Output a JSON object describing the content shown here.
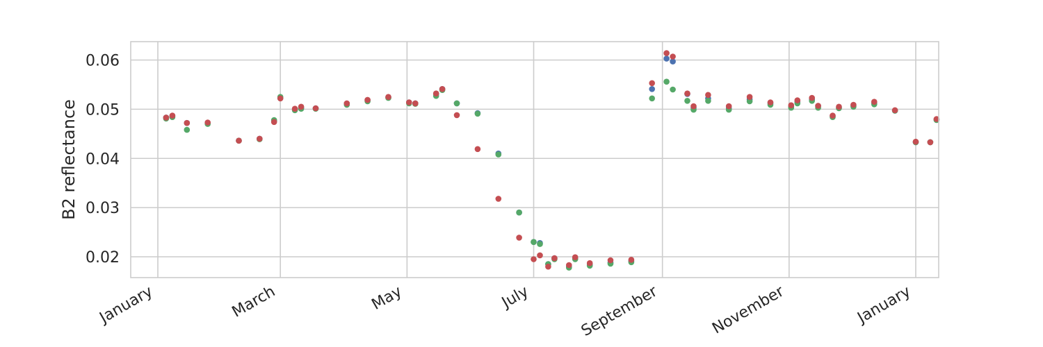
{
  "chart_data": {
    "type": "scatter",
    "title": "",
    "xlabel": "",
    "ylabel": "B2 reflectance",
    "x_scale": "date",
    "xlim": [
      "2018-11-28",
      "2019-01-08"
    ],
    "ylim": [
      0.0157,
      0.0641
    ],
    "grid": true,
    "legend": "none",
    "x_ticks": [
      {
        "date": "2018-01-01",
        "label": "January"
      },
      {
        "date": "2018-03-01",
        "label": "March"
      },
      {
        "date": "2018-05-01",
        "label": "May"
      },
      {
        "date": "2018-07-01",
        "label": "July"
      },
      {
        "date": "2018-09-01",
        "label": "September"
      },
      {
        "date": "2018-11-01",
        "label": "November"
      },
      {
        "date": "2019-01-01",
        "label": "January"
      }
    ],
    "y_ticks": [
      {
        "value": 0.02,
        "label": "0.02"
      },
      {
        "value": 0.03,
        "label": "0.03"
      },
      {
        "value": 0.04,
        "label": "0.04"
      },
      {
        "value": 0.05,
        "label": "0.05"
      },
      {
        "value": 0.06,
        "label": "0.06"
      }
    ],
    "series": [
      {
        "color": "#4c72b0",
        "points": [
          {
            "x": "2018-01-05",
            "y": 0.0483
          },
          {
            "x": "2018-01-08",
            "y": 0.0486
          },
          {
            "x": "2018-01-15",
            "y": 0.0472
          },
          {
            "x": "2018-01-25",
            "y": 0.0472
          },
          {
            "x": "2018-02-09",
            "y": 0.0436
          },
          {
            "x": "2018-02-19",
            "y": 0.044
          },
          {
            "x": "2018-02-26",
            "y": 0.0476
          },
          {
            "x": "2018-03-01",
            "y": 0.0523
          },
          {
            "x": "2018-03-08",
            "y": 0.05
          },
          {
            "x": "2018-03-11",
            "y": 0.0503
          },
          {
            "x": "2018-03-18",
            "y": 0.0502
          },
          {
            "x": "2018-04-02",
            "y": 0.0511
          },
          {
            "x": "2018-04-12",
            "y": 0.0518
          },
          {
            "x": "2018-04-22",
            "y": 0.0524
          },
          {
            "x": "2018-05-02",
            "y": 0.0514
          },
          {
            "x": "2018-05-05",
            "y": 0.0512
          },
          {
            "x": "2018-05-15",
            "y": 0.0531
          },
          {
            "x": "2018-05-18",
            "y": 0.0541
          },
          {
            "x": "2018-05-25",
            "y": 0.0512
          },
          {
            "x": "2018-06-04",
            "y": 0.0492
          },
          {
            "x": "2018-06-14",
            "y": 0.041
          },
          {
            "x": "2018-06-24",
            "y": 0.029
          },
          {
            "x": "2018-07-01",
            "y": 0.023
          },
          {
            "x": "2018-07-04",
            "y": 0.0228
          },
          {
            "x": "2018-07-08",
            "y": 0.0185
          },
          {
            "x": "2018-07-11",
            "y": 0.0197
          },
          {
            "x": "2018-07-18",
            "y": 0.018
          },
          {
            "x": "2018-07-21",
            "y": 0.0197
          },
          {
            "x": "2018-07-28",
            "y": 0.0184
          },
          {
            "x": "2018-08-07",
            "y": 0.0188
          },
          {
            "x": "2018-08-17",
            "y": 0.0191
          },
          {
            "x": "2018-08-27",
            "y": 0.0541
          },
          {
            "x": "2018-09-03",
            "y": 0.0603
          },
          {
            "x": "2018-09-06",
            "y": 0.0597
          },
          {
            "x": "2018-09-13",
            "y": 0.0531
          },
          {
            "x": "2018-09-16",
            "y": 0.0503
          },
          {
            "x": "2018-09-23",
            "y": 0.0522
          },
          {
            "x": "2018-10-03",
            "y": 0.0502
          },
          {
            "x": "2018-10-13",
            "y": 0.052
          },
          {
            "x": "2018-10-23",
            "y": 0.0512
          },
          {
            "x": "2018-11-02",
            "y": 0.0505
          },
          {
            "x": "2018-11-05",
            "y": 0.0515
          },
          {
            "x": "2018-11-12",
            "y": 0.052
          },
          {
            "x": "2018-11-15",
            "y": 0.0506
          },
          {
            "x": "2018-11-22",
            "y": 0.0486
          },
          {
            "x": "2018-11-25",
            "y": 0.0503
          },
          {
            "x": "2018-12-02",
            "y": 0.0507
          },
          {
            "x": "2018-12-12",
            "y": 0.0513
          },
          {
            "x": "2018-12-22",
            "y": 0.0497
          },
          {
            "x": "2019-01-01",
            "y": 0.0433
          },
          {
            "x": "2019-01-08",
            "y": 0.0433
          },
          {
            "x": "2019-01-11",
            "y": 0.0479
          }
        ]
      },
      {
        "color": "#55a868",
        "points": [
          {
            "x": "2018-01-05",
            "y": 0.0481
          },
          {
            "x": "2018-01-08",
            "y": 0.0484
          },
          {
            "x": "2018-01-15",
            "y": 0.0458
          },
          {
            "x": "2018-01-25",
            "y": 0.047
          },
          {
            "x": "2018-02-09",
            "y": 0.0436
          },
          {
            "x": "2018-02-19",
            "y": 0.0439
          },
          {
            "x": "2018-02-26",
            "y": 0.0478
          },
          {
            "x": "2018-03-01",
            "y": 0.0525
          },
          {
            "x": "2018-03-08",
            "y": 0.0498
          },
          {
            "x": "2018-03-11",
            "y": 0.0501
          },
          {
            "x": "2018-03-18",
            "y": 0.0501
          },
          {
            "x": "2018-04-02",
            "y": 0.0509
          },
          {
            "x": "2018-04-12",
            "y": 0.0516
          },
          {
            "x": "2018-04-22",
            "y": 0.0523
          },
          {
            "x": "2018-05-02",
            "y": 0.0512
          },
          {
            "x": "2018-05-05",
            "y": 0.0511
          },
          {
            "x": "2018-05-15",
            "y": 0.0527
          },
          {
            "x": "2018-05-18",
            "y": 0.0539
          },
          {
            "x": "2018-05-25",
            "y": 0.0512
          },
          {
            "x": "2018-06-04",
            "y": 0.0491
          },
          {
            "x": "2018-06-14",
            "y": 0.0408
          },
          {
            "x": "2018-06-24",
            "y": 0.029
          },
          {
            "x": "2018-07-01",
            "y": 0.023
          },
          {
            "x": "2018-07-04",
            "y": 0.0226
          },
          {
            "x": "2018-07-08",
            "y": 0.0185
          },
          {
            "x": "2018-07-11",
            "y": 0.0195
          },
          {
            "x": "2018-07-18",
            "y": 0.0178
          },
          {
            "x": "2018-07-21",
            "y": 0.0195
          },
          {
            "x": "2018-07-28",
            "y": 0.0182
          },
          {
            "x": "2018-08-07",
            "y": 0.0186
          },
          {
            "x": "2018-08-17",
            "y": 0.0189
          },
          {
            "x": "2018-08-27",
            "y": 0.0522
          },
          {
            "x": "2018-09-03",
            "y": 0.0556
          },
          {
            "x": "2018-09-06",
            "y": 0.054
          },
          {
            "x": "2018-09-13",
            "y": 0.0517
          },
          {
            "x": "2018-09-16",
            "y": 0.0499
          },
          {
            "x": "2018-09-23",
            "y": 0.0517
          },
          {
            "x": "2018-10-03",
            "y": 0.0499
          },
          {
            "x": "2018-10-13",
            "y": 0.0516
          },
          {
            "x": "2018-10-23",
            "y": 0.0509
          },
          {
            "x": "2018-11-02",
            "y": 0.0503
          },
          {
            "x": "2018-11-05",
            "y": 0.0512
          },
          {
            "x": "2018-11-12",
            "y": 0.0517
          },
          {
            "x": "2018-11-15",
            "y": 0.0503
          },
          {
            "x": "2018-11-22",
            "y": 0.0484
          },
          {
            "x": "2018-11-25",
            "y": 0.0502
          },
          {
            "x": "2018-12-02",
            "y": 0.0505
          },
          {
            "x": "2018-12-12",
            "y": 0.051
          },
          {
            "x": "2018-12-22",
            "y": 0.0497
          },
          {
            "x": "2019-01-01",
            "y": 0.0433
          },
          {
            "x": "2019-01-08",
            "y": 0.0433
          },
          {
            "x": "2019-01-11",
            "y": 0.0478
          }
        ]
      },
      {
        "color": "#c44e52",
        "points": [
          {
            "x": "2018-01-05",
            "y": 0.0483
          },
          {
            "x": "2018-01-08",
            "y": 0.0487
          },
          {
            "x": "2018-01-15",
            "y": 0.0472
          },
          {
            "x": "2018-01-25",
            "y": 0.0473
          },
          {
            "x": "2018-02-09",
            "y": 0.0436
          },
          {
            "x": "2018-02-19",
            "y": 0.044
          },
          {
            "x": "2018-02-26",
            "y": 0.0474
          },
          {
            "x": "2018-03-01",
            "y": 0.0522
          },
          {
            "x": "2018-03-08",
            "y": 0.0501
          },
          {
            "x": "2018-03-11",
            "y": 0.0505
          },
          {
            "x": "2018-03-18",
            "y": 0.0502
          },
          {
            "x": "2018-04-02",
            "y": 0.0512
          },
          {
            "x": "2018-04-12",
            "y": 0.0519
          },
          {
            "x": "2018-04-22",
            "y": 0.0525
          },
          {
            "x": "2018-05-02",
            "y": 0.0514
          },
          {
            "x": "2018-05-05",
            "y": 0.0512
          },
          {
            "x": "2018-05-15",
            "y": 0.0532
          },
          {
            "x": "2018-05-18",
            "y": 0.0541
          },
          {
            "x": "2018-05-25",
            "y": 0.0488
          },
          {
            "x": "2018-06-04",
            "y": 0.0419
          },
          {
            "x": "2018-06-14",
            "y": 0.0318
          },
          {
            "x": "2018-06-24",
            "y": 0.0239
          },
          {
            "x": "2018-07-01",
            "y": 0.0195
          },
          {
            "x": "2018-07-04",
            "y": 0.0203
          },
          {
            "x": "2018-07-08",
            "y": 0.018
          },
          {
            "x": "2018-07-11",
            "y": 0.0197
          },
          {
            "x": "2018-07-18",
            "y": 0.0183
          },
          {
            "x": "2018-07-21",
            "y": 0.0199
          },
          {
            "x": "2018-07-28",
            "y": 0.0187
          },
          {
            "x": "2018-08-07",
            "y": 0.0193
          },
          {
            "x": "2018-08-17",
            "y": 0.0194
          },
          {
            "x": "2018-08-27",
            "y": 0.0553
          },
          {
            "x": "2018-09-03",
            "y": 0.0614
          },
          {
            "x": "2018-09-06",
            "y": 0.0607
          },
          {
            "x": "2018-09-13",
            "y": 0.0532
          },
          {
            "x": "2018-09-16",
            "y": 0.0506
          },
          {
            "x": "2018-09-23",
            "y": 0.0529
          },
          {
            "x": "2018-10-03",
            "y": 0.0506
          },
          {
            "x": "2018-10-13",
            "y": 0.0525
          },
          {
            "x": "2018-10-23",
            "y": 0.0514
          },
          {
            "x": "2018-11-02",
            "y": 0.0508
          },
          {
            "x": "2018-11-05",
            "y": 0.0518
          },
          {
            "x": "2018-11-12",
            "y": 0.0523
          },
          {
            "x": "2018-11-15",
            "y": 0.0507
          },
          {
            "x": "2018-11-22",
            "y": 0.0487
          },
          {
            "x": "2018-11-25",
            "y": 0.0505
          },
          {
            "x": "2018-12-02",
            "y": 0.0509
          },
          {
            "x": "2018-12-12",
            "y": 0.0515
          },
          {
            "x": "2018-12-22",
            "y": 0.0498
          },
          {
            "x": "2019-01-01",
            "y": 0.0434
          },
          {
            "x": "2019-01-08",
            "y": 0.0433
          },
          {
            "x": "2019-01-11",
            "y": 0.048
          }
        ]
      }
    ]
  }
}
